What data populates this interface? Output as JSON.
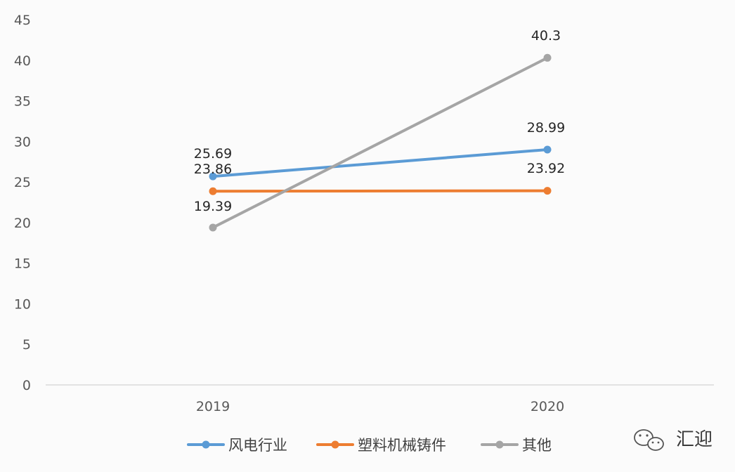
{
  "chart_data": {
    "type": "line",
    "categories": [
      "2019",
      "2020"
    ],
    "series": [
      {
        "name": "风电行业",
        "values": [
          25.69,
          28.99
        ],
        "labels": [
          "25.69",
          "28.99"
        ],
        "color": "#5b9bd5"
      },
      {
        "name": "塑料机械铸件",
        "values": [
          23.86,
          23.92
        ],
        "labels": [
          "23.86",
          "23.92"
        ],
        "color": "#ed7d31"
      },
      {
        "name": "其他",
        "values": [
          19.39,
          40.3
        ],
        "labels": [
          "19.39",
          "40.3"
        ],
        "color": "#a5a5a5"
      }
    ],
    "ylim": [
      0,
      45
    ],
    "yticks": [
      0,
      5,
      10,
      15,
      20,
      25,
      30,
      35,
      40,
      45
    ],
    "ytick_labels": [
      "0",
      "5",
      "10",
      "15",
      "20",
      "25",
      "30",
      "35",
      "40",
      "45"
    ],
    "grid": false,
    "legend": "bottom",
    "title": "",
    "xlabel": "",
    "ylabel": ""
  },
  "watermark": {
    "text": "汇迎",
    "icon": "wechat-icon"
  }
}
